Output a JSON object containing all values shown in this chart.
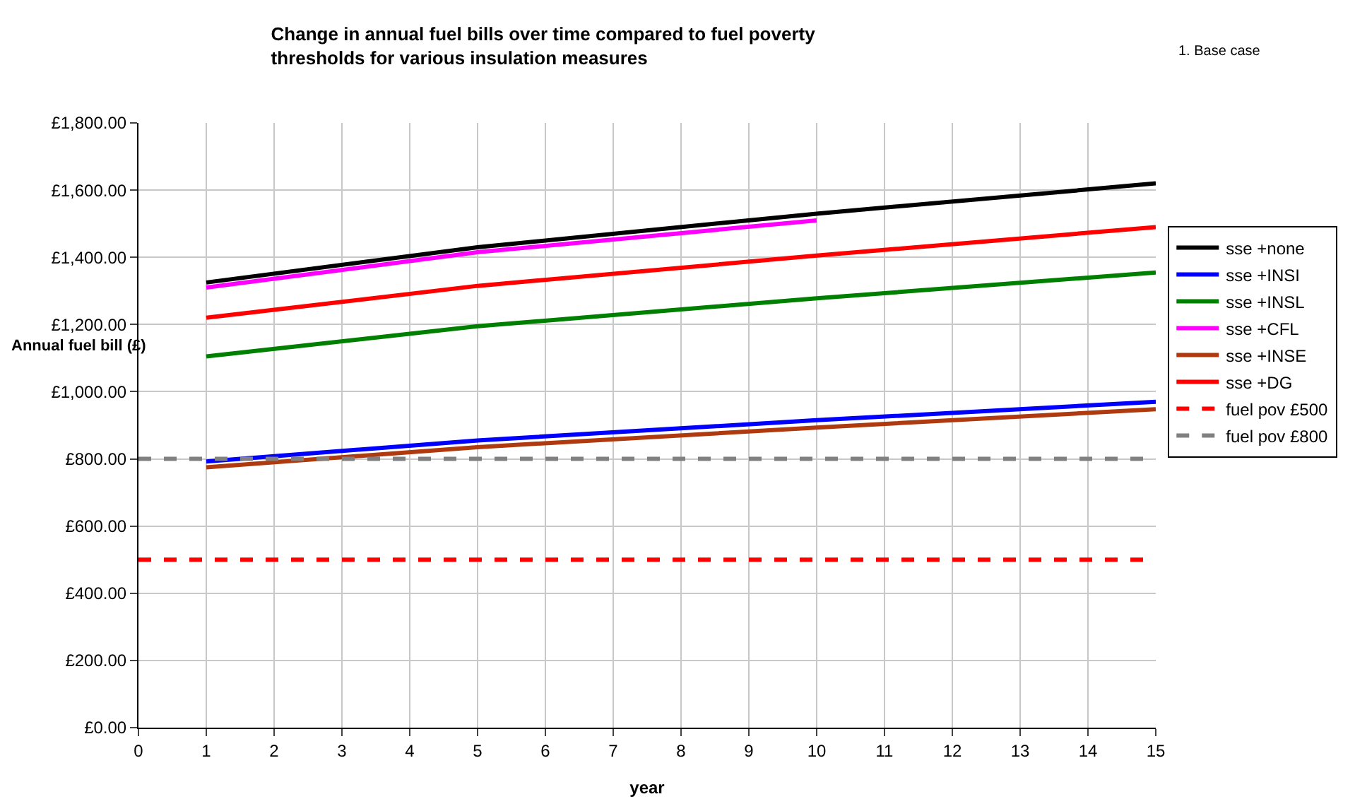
{
  "chart_data": {
    "type": "line",
    "title": "Change in annual fuel bills over time compared to fuel poverty thresholds for various insulation measures",
    "xlabel": "year",
    "ylabel": "Annual fuel bill (£)",
    "annotations": [
      "1. Base case"
    ],
    "xlim": [
      0,
      15
    ],
    "xticks": [
      0,
      1,
      2,
      3,
      4,
      5,
      6,
      7,
      8,
      9,
      10,
      11,
      12,
      13,
      14,
      15
    ],
    "ylim": [
      0,
      1800
    ],
    "yticks": [
      {
        "value": 0,
        "label": "£0.00"
      },
      {
        "value": 200,
        "label": "£200.00"
      },
      {
        "value": 400,
        "label": "£400.00"
      },
      {
        "value": 600,
        "label": "£600.00"
      },
      {
        "value": 800,
        "label": "£800.00"
      },
      {
        "value": 1000,
        "label": "£1,000.00"
      },
      {
        "value": 1200,
        "label": "£1,200.00"
      },
      {
        "value": 1400,
        "label": "£1,400.00"
      },
      {
        "value": 1600,
        "label": "£1,600.00"
      },
      {
        "value": 1800,
        "label": "£1,800.00"
      }
    ],
    "grid": true,
    "legend": "right",
    "marker": "none",
    "series": [
      {
        "name": "sse +none",
        "color": "#000000",
        "x": [
          1,
          5,
          10,
          15
        ],
        "values": [
          1325,
          1430,
          1530,
          1620
        ]
      },
      {
        "name": "sse +INSI",
        "color": "#0000ff",
        "x": [
          1,
          5,
          10,
          15
        ],
        "values": [
          792,
          855,
          915,
          970
        ]
      },
      {
        "name": "sse +INSL",
        "color": "#008000",
        "x": [
          1,
          5,
          10,
          15
        ],
        "values": [
          1105,
          1195,
          1278,
          1355
        ]
      },
      {
        "name": "sse +CFL",
        "color": "#ff00ff",
        "x": [
          1,
          5,
          10
        ],
        "values": [
          1310,
          1415,
          1510
        ]
      },
      {
        "name": "sse +INSE",
        "color": "#b03a10",
        "x": [
          1,
          5,
          10,
          15
        ],
        "values": [
          775,
          835,
          893,
          948
        ]
      },
      {
        "name": "sse +DG",
        "color": "#ff0000",
        "x": [
          1,
          5,
          10,
          15
        ],
        "values": [
          1220,
          1315,
          1405,
          1490
        ]
      },
      {
        "name": "fuel pov £500",
        "color": "#ff0000",
        "x": [
          0,
          15
        ],
        "values": [
          500,
          500
        ],
        "line_style": "dashed"
      },
      {
        "name": "fuel pov £800",
        "color": "#808080",
        "x": [
          0,
          15
        ],
        "values": [
          800,
          800
        ],
        "line_style": "dashed"
      }
    ]
  }
}
